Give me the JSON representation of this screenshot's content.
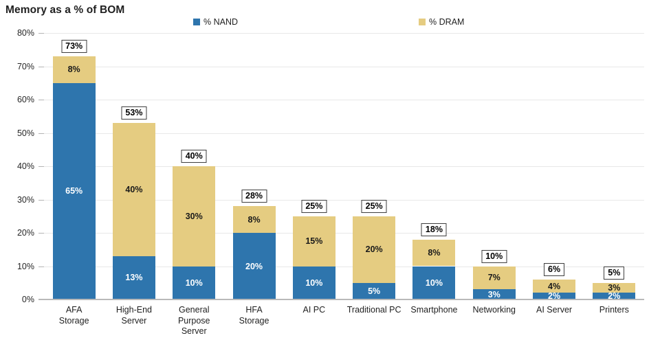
{
  "chart_data": {
    "type": "bar",
    "stacked": true,
    "title": "Memory as a % of BOM",
    "legend_position": "top",
    "grid": true,
    "categories": [
      "AFA\nStorage",
      "High-End\nServer",
      "General\nPurpose\nServer",
      "HFA\nStorage",
      "AI PC",
      "Traditional PC",
      "Smartphone",
      "Networking",
      "AI Server",
      "Printers"
    ],
    "series": [
      {
        "name": "% NAND",
        "color": "#2E75AD",
        "label_color": "#FFFFFF",
        "values": [
          65,
          13,
          10,
          20,
          10,
          5,
          10,
          3,
          2,
          2
        ]
      },
      {
        "name": "% DRAM",
        "color": "#E5CC81",
        "label_color": "#1A1A1A",
        "values": [
          8,
          40,
          30,
          8,
          15,
          20,
          8,
          7,
          4,
          3
        ]
      }
    ],
    "totals": [
      73,
      53,
      40,
      28,
      25,
      25,
      18,
      10,
      6,
      5
    ],
    "y_axis": {
      "min": 0,
      "max": 80,
      "ticks": [
        "0%",
        "10%",
        "20%",
        "30%",
        "40%",
        "50%",
        "60%",
        "70%",
        "80%"
      ]
    },
    "colors": {
      "gridline": "#E8E8E8",
      "axis_line": "#B9B9B9",
      "total_box_border": "#3D3D3D",
      "total_box_fill": "#FFFFFF"
    }
  }
}
